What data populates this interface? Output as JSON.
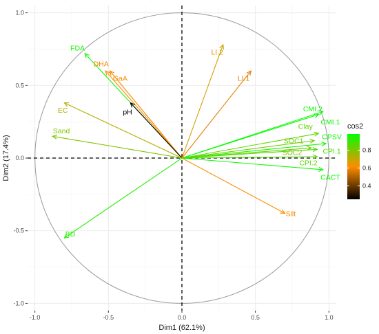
{
  "chart_data": {
    "type": "scatter",
    "subtype": "pca-variable-correlation-circle",
    "title": "",
    "xlabel": "Dim1 (62.1%)",
    "ylabel": "Dim2 (17.4%)",
    "xlim": [
      -1.05,
      1.05
    ],
    "ylim": [
      -1.05,
      1.05
    ],
    "xticks": [
      -1.0,
      -0.5,
      0.0,
      0.5,
      1.0
    ],
    "yticks": [
      -1.0,
      -0.5,
      0.0,
      0.5,
      1.0
    ],
    "xtick_labels": [
      "-1.0",
      "-0.5",
      "0.0",
      "0.5",
      "1.0"
    ],
    "ytick_labels": [
      "-1.0",
      "-0.5",
      "0.0",
      "0.5",
      "1.0"
    ],
    "grid": true,
    "unit_circle": true,
    "legend": {
      "title": "cos2",
      "position": "right",
      "ticks": [
        0.4,
        0.6,
        0.8
      ],
      "tick_labels": [
        "0.4",
        "0.6",
        "0.8"
      ],
      "range": [
        0.25,
        0.98
      ],
      "colors": [
        "#000000",
        "#ff8c00",
        "#00ff00"
      ]
    },
    "variables": [
      {
        "name": "FDA",
        "x": -0.66,
        "y": 0.72,
        "cos2": 0.95,
        "label_x": -0.71,
        "label_y": 0.76
      },
      {
        "name": "DHA",
        "x": -0.49,
        "y": 0.6,
        "cos2": 0.6,
        "label_x": -0.55,
        "label_y": 0.65
      },
      {
        "name": "GaA",
        "x": -0.52,
        "y": 0.6,
        "cos2": 0.62,
        "label_x": -0.42,
        "label_y": 0.55
      },
      {
        "name": "pH",
        "x": -0.35,
        "y": 0.38,
        "cos2": 0.25,
        "label_x": -0.37,
        "label_y": 0.32
      },
      {
        "name": "EC",
        "x": -0.8,
        "y": 0.38,
        "cos2": 0.72,
        "label_x": -0.81,
        "label_y": 0.33
      },
      {
        "name": "Sand",
        "x": -0.88,
        "y": 0.15,
        "cos2": 0.8,
        "label_x": -0.82,
        "label_y": 0.19
      },
      {
        "name": "BD",
        "x": -0.8,
        "y": -0.55,
        "cos2": 0.93,
        "label_x": -0.76,
        "label_y": -0.52
      },
      {
        "name": "LI.2",
        "x": 0.28,
        "y": 0.78,
        "cos2": 0.68,
        "label_x": 0.24,
        "label_y": 0.73
      },
      {
        "name": "LI.1",
        "x": 0.47,
        "y": 0.6,
        "cos2": 0.58,
        "label_x": 0.42,
        "label_y": 0.55
      },
      {
        "name": "CMI.2",
        "x": 0.93,
        "y": 0.3,
        "cos2": 0.97,
        "label_x": 0.89,
        "label_y": 0.34
      },
      {
        "name": "CMI.1",
        "x": 0.96,
        "y": 0.32,
        "cos2": 0.97,
        "label_x": 1.01,
        "label_y": 0.25
      },
      {
        "name": "Clay",
        "x": 0.93,
        "y": 0.17,
        "cos2": 0.85,
        "label_x": 0.84,
        "label_y": 0.22
      },
      {
        "name": "SOC1",
        "x": 0.9,
        "y": 0.12,
        "cos2": 0.82,
        "label_x": 0.76,
        "label_y": 0.12
      },
      {
        "name": "CPSV",
        "x": 0.98,
        "y": 0.1,
        "cos2": 0.96,
        "label_x": 1.02,
        "label_y": 0.15
      },
      {
        "name": "SOC2",
        "x": 0.88,
        "y": 0.07,
        "cos2": 0.8,
        "label_x": 0.75,
        "label_y": 0.04
      },
      {
        "name": "CPI.1",
        "x": 0.92,
        "y": 0.06,
        "cos2": 0.88,
        "label_x": 1.02,
        "label_y": 0.05
      },
      {
        "name": "CPI.2",
        "x": 0.92,
        "y": 0.01,
        "cos2": 0.86,
        "label_x": 0.86,
        "label_y": -0.03
      },
      {
        "name": "CACT",
        "x": 0.96,
        "y": -0.08,
        "cos2": 0.97,
        "label_x": 1.01,
        "label_y": -0.13
      },
      {
        "name": "Silt",
        "x": 0.7,
        "y": -0.38,
        "cos2": 0.62,
        "label_x": 0.74,
        "label_y": -0.38
      }
    ]
  }
}
